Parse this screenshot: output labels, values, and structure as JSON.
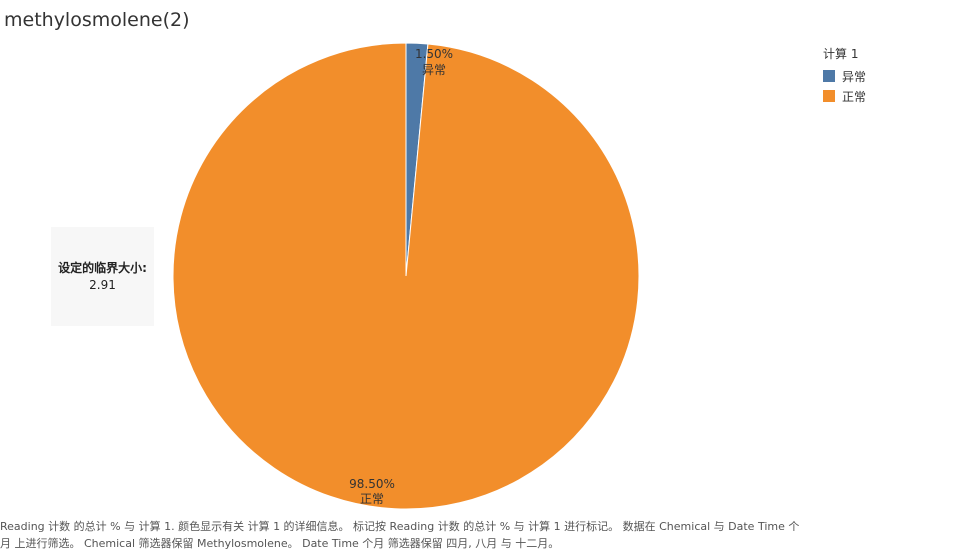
{
  "title": "methylosmolene(2)",
  "chart_data": {
    "type": "pie",
    "legend_position": "top-right",
    "legend_title": "计算 1",
    "slices": [
      {
        "name": "异常",
        "value": 1.5,
        "label": "1.50%",
        "color": "#4e79a7"
      },
      {
        "name": "正常",
        "value": 98.5,
        "label": "98.50%",
        "color": "#f28e2b"
      }
    ]
  },
  "annotation": {
    "label": "设定的临界大小:",
    "value": "2.91"
  },
  "caption": "Reading 计数 的总计 % 与 计算 1. 颜色显示有关 计算 1 的详细信息。 标记按 Reading 计数 的总计 % 与 计算 1 进行标记。 数据在 Chemical 与 Date Time 个月 上进行筛选。 Chemical 筛选器保留 Methylosmolene。 Date Time 个月 筛选器保留 四月, 八月 与 十二月。"
}
